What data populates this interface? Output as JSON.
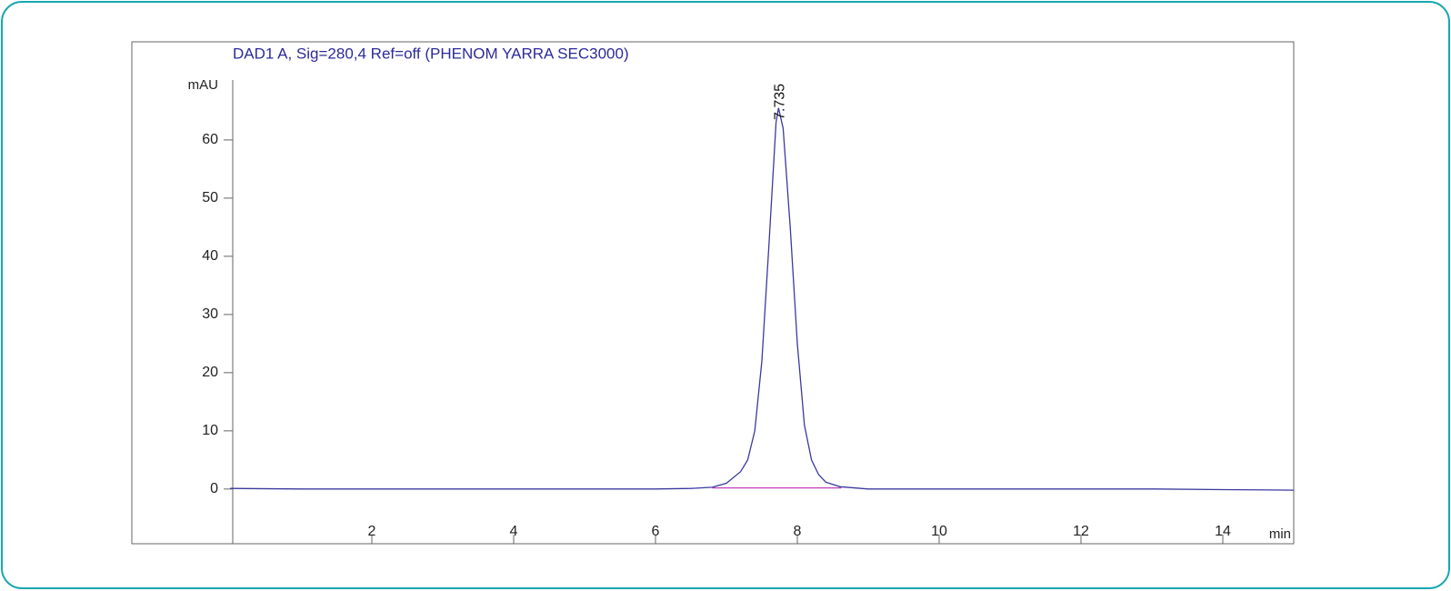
{
  "chart_data": {
    "type": "line",
    "title": "DAD1 A, Sig=280,4 Ref=off (PHENOM YARRA SEC3000)",
    "ylabel": "mAU",
    "xlabel": "min",
    "x": [
      0,
      1,
      2,
      3,
      4,
      5,
      6,
      6.5,
      6.8,
      7.0,
      7.2,
      7.3,
      7.4,
      7.5,
      7.6,
      7.7,
      7.735,
      7.8,
      7.9,
      8.0,
      8.1,
      8.2,
      8.3,
      8.4,
      8.6,
      9,
      10,
      11,
      12,
      13,
      14,
      15
    ],
    "series": [
      {
        "name": "DAD1 A",
        "color": "#3a3a9e",
        "values": [
          0.1,
          0,
          0,
          0,
          0,
          0,
          0,
          0.1,
          0.3,
          1,
          3,
          5,
          10,
          22,
          42,
          63,
          65.5,
          62,
          45,
          25,
          11,
          5,
          2.5,
          1.2,
          0.4,
          0,
          0,
          0,
          0,
          0,
          -0.1,
          -0.2
        ]
      }
    ],
    "baseline": {
      "x": [
        6.8,
        8.62
      ],
      "values": [
        0.2,
        0.2
      ],
      "color": "#c040c0"
    },
    "peak_labels": [
      7.735
    ],
    "xlim": [
      0,
      15
    ],
    "ylim": [
      -9.4,
      70.3
    ],
    "xticks": [
      2,
      4,
      6,
      8,
      10,
      12,
      14
    ],
    "yticks": [
      0,
      10,
      20,
      30,
      40,
      50,
      60
    ]
  }
}
